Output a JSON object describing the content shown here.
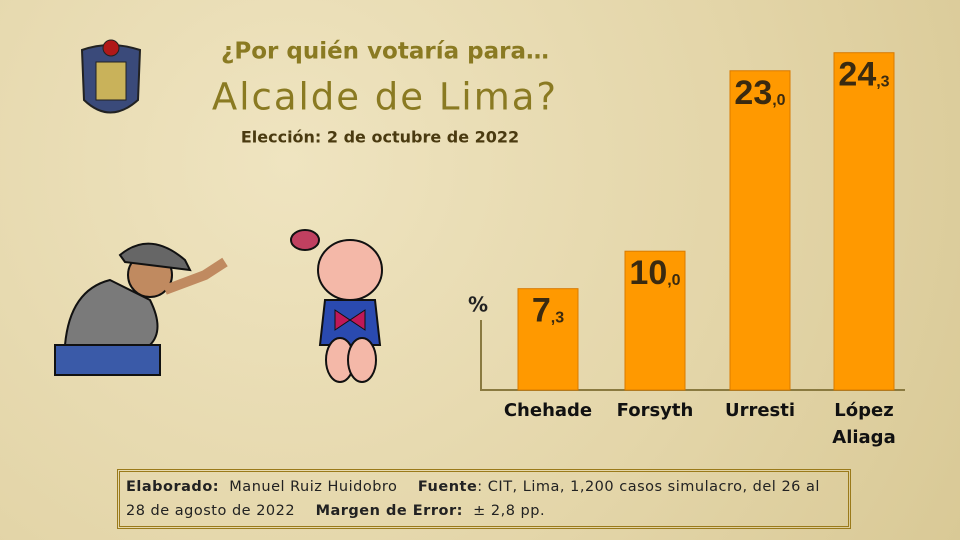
{
  "chart_data": {
    "type": "bar",
    "title": "¿Por quién votaría para…",
    "subtitle": "Alcalde de Lima?",
    "note": "Elección: 2 de octubre de 2022",
    "y_label": "%",
    "categories": [
      "Chehade",
      "Forsyth",
      "Urresti",
      "López Aliaga"
    ],
    "values": [
      7.3,
      10.0,
      23.0,
      24.3
    ],
    "value_labels": [
      "7,3",
      "10,0",
      "23,0",
      "24,3"
    ],
    "color": "#ff9900",
    "ylim": [
      0,
      25
    ],
    "grid": false
  },
  "footer": {
    "elaborado_label": "Elaborado:",
    "elaborado": "Manuel Ruiz Huidobro",
    "fuente_label": "Fuente",
    "fuente": ": CIT, Lima,  1,200 casos simulacro, del 26 al 28 de agosto de 2022",
    "margen_label": "Margen de Error:",
    "margen": "± 2,8 pp."
  }
}
